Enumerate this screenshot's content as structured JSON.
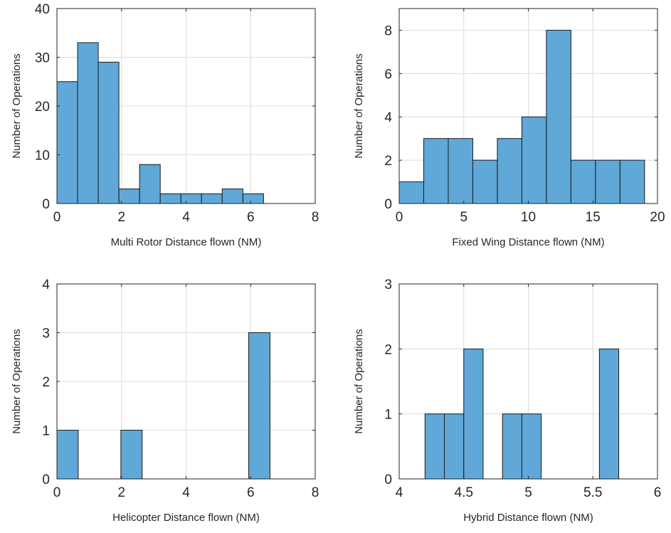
{
  "figure": {
    "background": "#ffffff",
    "bar_color": "#5fa8d8",
    "edge_color": "#1a1a1a"
  },
  "chart_data": [
    {
      "type": "bar",
      "subtype": "histogram",
      "xlabel": "Multi Rotor Distance flown (NM)",
      "ylabel": "Number of Operations",
      "xlim": [
        0,
        8
      ],
      "ylim": [
        0,
        40
      ],
      "xticks": [
        0,
        2,
        4,
        6,
        8
      ],
      "yticks": [
        0,
        10,
        20,
        30,
        40
      ],
      "grid": true,
      "bin_edges": [
        0,
        0.64,
        1.28,
        1.92,
        2.56,
        3.2,
        3.84,
        4.48,
        5.12,
        5.76,
        6.4
      ],
      "values": [
        25,
        33,
        29,
        3,
        8,
        2,
        2,
        2,
        3,
        2
      ]
    },
    {
      "type": "bar",
      "subtype": "histogram",
      "xlabel": "Fixed Wing Distance flown (NM)",
      "ylabel": "Number of Operations",
      "xlim": [
        0,
        20
      ],
      "ylim": [
        0,
        9
      ],
      "xticks": [
        0,
        5,
        10,
        15,
        20
      ],
      "yticks": [
        0,
        2,
        4,
        6,
        8
      ],
      "grid": true,
      "bin_edges": [
        0,
        1.9,
        3.8,
        5.7,
        7.6,
        9.5,
        11.4,
        13.3,
        15.2,
        17.1,
        19.0
      ],
      "values": [
        1,
        3,
        3,
        2,
        3,
        4,
        8,
        2,
        2,
        2
      ]
    },
    {
      "type": "bar",
      "subtype": "histogram",
      "xlabel": "Helicopter Distance flown (NM)",
      "ylabel": "Number of Operations",
      "xlim": [
        0,
        8
      ],
      "ylim": [
        0,
        4
      ],
      "xticks": [
        0,
        2,
        4,
        6,
        8
      ],
      "yticks": [
        0,
        1,
        2,
        3,
        4
      ],
      "grid": true,
      "bin_edges": [
        0,
        0.66,
        1.32,
        1.98,
        2.64,
        3.3,
        3.96,
        4.62,
        5.28,
        5.94,
        6.6
      ],
      "values": [
        1,
        0,
        0,
        1,
        0,
        0,
        0,
        0,
        0,
        3
      ]
    },
    {
      "type": "bar",
      "subtype": "histogram",
      "xlabel": "Hybrid Distance flown (NM)",
      "ylabel": "Number of Operations",
      "xlim": [
        4,
        6
      ],
      "ylim": [
        0,
        3
      ],
      "xticks": [
        4,
        4.5,
        5,
        5.5,
        6
      ],
      "yticks": [
        0,
        1,
        2,
        3
      ],
      "grid": true,
      "bin_edges": [
        4.2,
        4.35,
        4.5,
        4.65,
        4.8,
        4.95,
        5.1,
        5.25,
        5.4,
        5.55,
        5.7
      ],
      "values": [
        1,
        1,
        2,
        0,
        1,
        1,
        0,
        0,
        0,
        2
      ]
    }
  ]
}
